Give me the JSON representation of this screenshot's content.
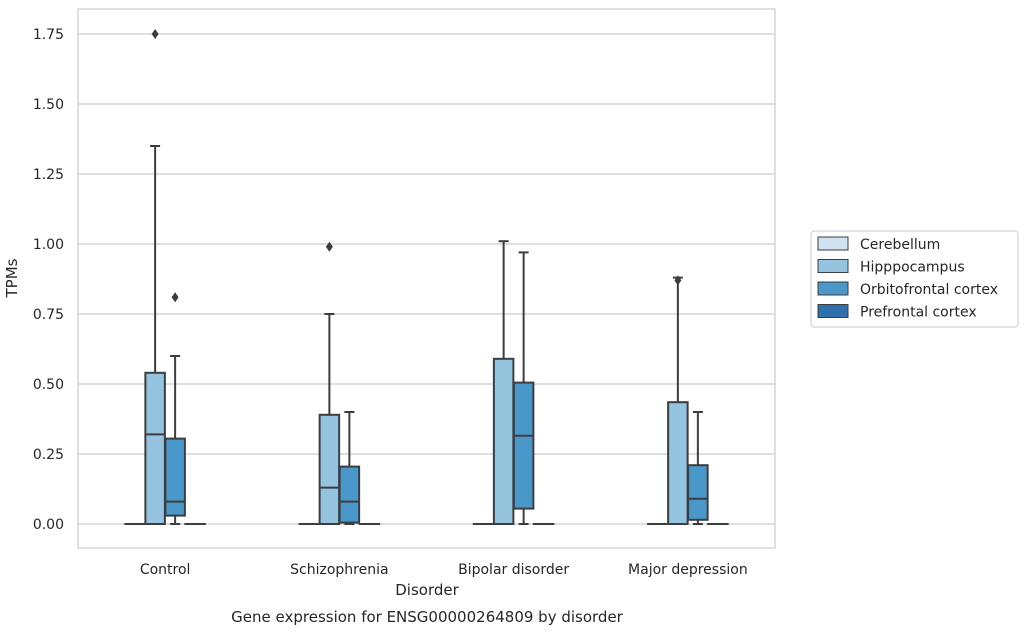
{
  "chart_data": {
    "type": "box",
    "caption": "Gene expression for ENSG00000264809 by disorder",
    "xlabel": "Disorder",
    "ylabel": "TPMs",
    "ylim": [
      -0.085,
      1.84
    ],
    "yticks": [
      0.0,
      0.25,
      0.5,
      0.75,
      1.0,
      1.25,
      1.5,
      1.75
    ],
    "ytick_labels": [
      "0.00",
      "0.25",
      "0.50",
      "0.75",
      "1.00",
      "1.25",
      "1.50",
      "1.75"
    ],
    "grid": "horizontal",
    "legend_position": "right",
    "categories": [
      "Control",
      "Schizophrenia",
      "Bipolar disorder",
      "Major depression"
    ],
    "series": [
      {
        "name": "Cerebellum",
        "color": "#d0e1f2",
        "boxes": [
          {
            "min": 0,
            "q1": 0,
            "median": 0,
            "q3": 0,
            "max": 0,
            "outliers": []
          },
          {
            "min": 0,
            "q1": 0,
            "median": 0,
            "q3": 0,
            "max": 0,
            "outliers": []
          },
          {
            "min": 0,
            "q1": 0,
            "median": 0,
            "q3": 0,
            "max": 0,
            "outliers": []
          },
          {
            "min": 0,
            "q1": 0,
            "median": 0,
            "q3": 0,
            "max": 0,
            "outliers": []
          }
        ]
      },
      {
        "name": "Hipppocampus",
        "color": "#94c4df",
        "boxes": [
          {
            "min": 0,
            "q1": 0,
            "median": 0.32,
            "q3": 0.54,
            "max": 1.35,
            "outliers": [
              1.75
            ]
          },
          {
            "min": 0,
            "q1": 0,
            "median": 0.13,
            "q3": 0.39,
            "max": 0.75,
            "outliers": [
              0.99
            ]
          },
          {
            "min": 0,
            "q1": 0,
            "median": 0,
            "q3": 0.59,
            "max": 1.01,
            "outliers": []
          },
          {
            "min": 0,
            "q1": 0,
            "median": 0,
            "q3": 0.435,
            "max": 0.88,
            "outliers": [
              0.87
            ]
          }
        ]
      },
      {
        "name": "Orbitofrontal cortex",
        "color": "#4a98c9",
        "boxes": [
          {
            "min": 0,
            "q1": 0.03,
            "median": 0.08,
            "q3": 0.305,
            "max": 0.6,
            "outliers": [
              0.81
            ]
          },
          {
            "min": 0,
            "q1": 0.005,
            "median": 0.08,
            "q3": 0.205,
            "max": 0.4,
            "outliers": []
          },
          {
            "min": 0,
            "q1": 0.055,
            "median": 0.315,
            "q3": 0.505,
            "max": 0.97,
            "outliers": []
          },
          {
            "min": 0,
            "q1": 0.015,
            "median": 0.09,
            "q3": 0.21,
            "max": 0.4,
            "outliers": []
          }
        ]
      },
      {
        "name": "Prefrontal cortex",
        "color": "#2e6fac",
        "boxes": [
          {
            "min": 0,
            "q1": 0,
            "median": 0,
            "q3": 0,
            "max": 0,
            "outliers": []
          },
          {
            "min": 0,
            "q1": 0,
            "median": 0,
            "q3": 0,
            "max": 0,
            "outliers": []
          },
          {
            "min": 0,
            "q1": 0,
            "median": 0,
            "q3": 0,
            "max": 0,
            "outliers": []
          },
          {
            "min": 0,
            "q1": 0,
            "median": 0,
            "q3": 0,
            "max": 0,
            "outliers": []
          }
        ]
      }
    ]
  }
}
